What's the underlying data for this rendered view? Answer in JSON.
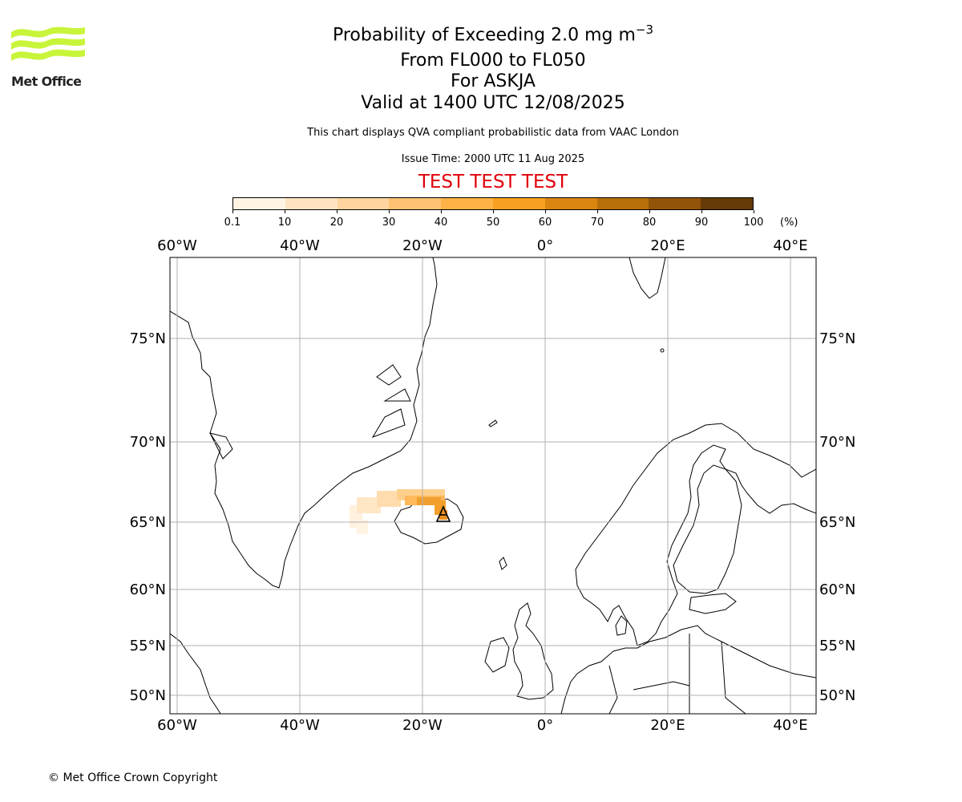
{
  "header": {
    "title_main": "Probability of Exceeding 2.0 mg m",
    "title_sup": "−3",
    "level_range": "From FL000 to FL050",
    "volcano": "For ASKJA",
    "valid_time": "Valid at 1400 UTC 12/08/2025",
    "disclaimer": "This chart displays QVA compliant probabilistic data from VAAC London",
    "issue_time": "Issue Time: 2000 UTC 11 Aug 2025",
    "test_banner": "TEST TEST TEST"
  },
  "logo": {
    "text": "Met Office",
    "color": "#c8f53a"
  },
  "colorbar": {
    "unit": "(%)",
    "ticks": [
      "0.1",
      "10",
      "20",
      "30",
      "40",
      "50",
      "60",
      "70",
      "80",
      "90",
      "100"
    ],
    "colors": [
      "#fff4e4",
      "#ffe4c2",
      "#ffd49e",
      "#ffc272",
      "#ffb246",
      "#f8a020",
      "#d98510",
      "#b8700a",
      "#925408",
      "#653a06"
    ]
  },
  "map": {
    "lon_labels": [
      "60°W",
      "40°W",
      "20°W",
      "0°",
      "20°E",
      "40°E"
    ],
    "lat_labels": [
      "75°N",
      "70°N",
      "65°N",
      "60°N",
      "55°N",
      "50°N"
    ],
    "gridlines": true,
    "volcano_marker": "volcano-triangle-icon",
    "plume_color_peak": "#f0a030"
  },
  "footer": {
    "copyright": "© Met Office Crown Copyright"
  }
}
